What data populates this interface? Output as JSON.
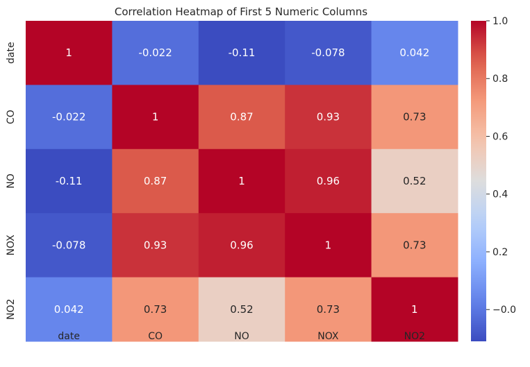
{
  "chart_data": {
    "type": "heatmap",
    "title": "Correlation Heatmap of First 5 Numeric Columns",
    "xlabel": "",
    "ylabel": "",
    "x_labels": [
      "date",
      "CO",
      "NO",
      "NOX",
      "NO2"
    ],
    "y_labels": [
      "date",
      "CO",
      "NO",
      "NOX",
      "NO2"
    ],
    "values": [
      [
        1,
        -0.022,
        -0.11,
        -0.078,
        0.042
      ],
      [
        -0.022,
        1,
        0.87,
        0.93,
        0.73
      ],
      [
        -0.11,
        0.87,
        1,
        0.96,
        0.52
      ],
      [
        -0.078,
        0.93,
        0.96,
        1,
        0.73
      ],
      [
        0.042,
        0.73,
        0.52,
        0.73,
        1
      ]
    ],
    "annotations": [
      [
        "1",
        "-0.022",
        "-0.11",
        "-0.078",
        "0.042"
      ],
      [
        "-0.022",
        "1",
        "0.87",
        "0.93",
        "0.73"
      ],
      [
        "-0.11",
        "0.87",
        "1",
        "0.96",
        "0.52"
      ],
      [
        "-0.078",
        "0.93",
        "0.96",
        "1",
        "0.73"
      ],
      [
        "0.042",
        "0.73",
        "0.52",
        "0.73",
        "1"
      ]
    ],
    "colormap": "coolwarm",
    "vmin": -0.11,
    "vmax": 1.0,
    "colorbar_ticks": [
      -0.0,
      0.2,
      0.4,
      0.6,
      0.8,
      1.0
    ],
    "colorbar_tick_labels": [
      "−0.0",
      "0.2",
      "0.4",
      "0.6",
      "0.8",
      "1.0"
    ]
  }
}
